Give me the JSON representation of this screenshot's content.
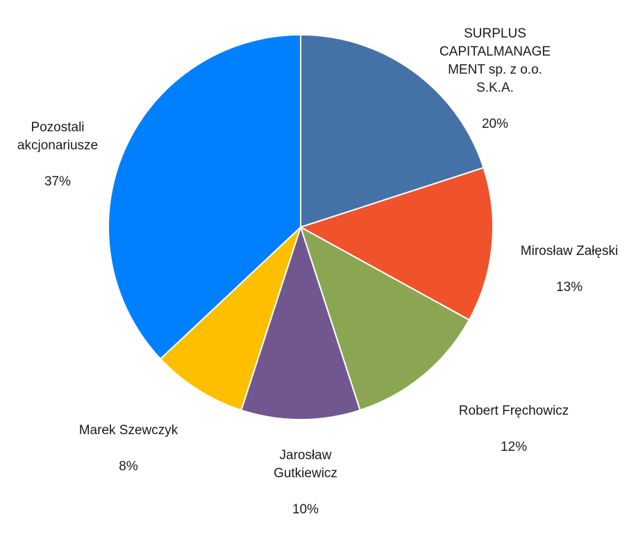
{
  "chart_data": {
    "type": "pie",
    "title": "",
    "slices": [
      {
        "label": "SURPLUS\nCAPITALMANAGE\nMENT sp. z o.o.\nS.K.A.",
        "pct_label": "20%",
        "value": 20,
        "color": "#4472a6"
      },
      {
        "label": "Mirosław Załęski",
        "pct_label": "13%",
        "value": 13,
        "color": "#f0532b"
      },
      {
        "label": "Robert Fręchowicz",
        "pct_label": "12%",
        "value": 12,
        "color": "#8ba653"
      },
      {
        "label": "Jarosław\nGutkiewicz",
        "pct_label": "10%",
        "value": 10,
        "color": "#71578f"
      },
      {
        "label": "Marek Szewczyk",
        "pct_label": "8%",
        "value": 8,
        "color": "#fdbf00"
      },
      {
        "label": "Pozostali\nakcjonariusze",
        "pct_label": "37%",
        "value": 37,
        "color": "#0080ff"
      }
    ]
  }
}
